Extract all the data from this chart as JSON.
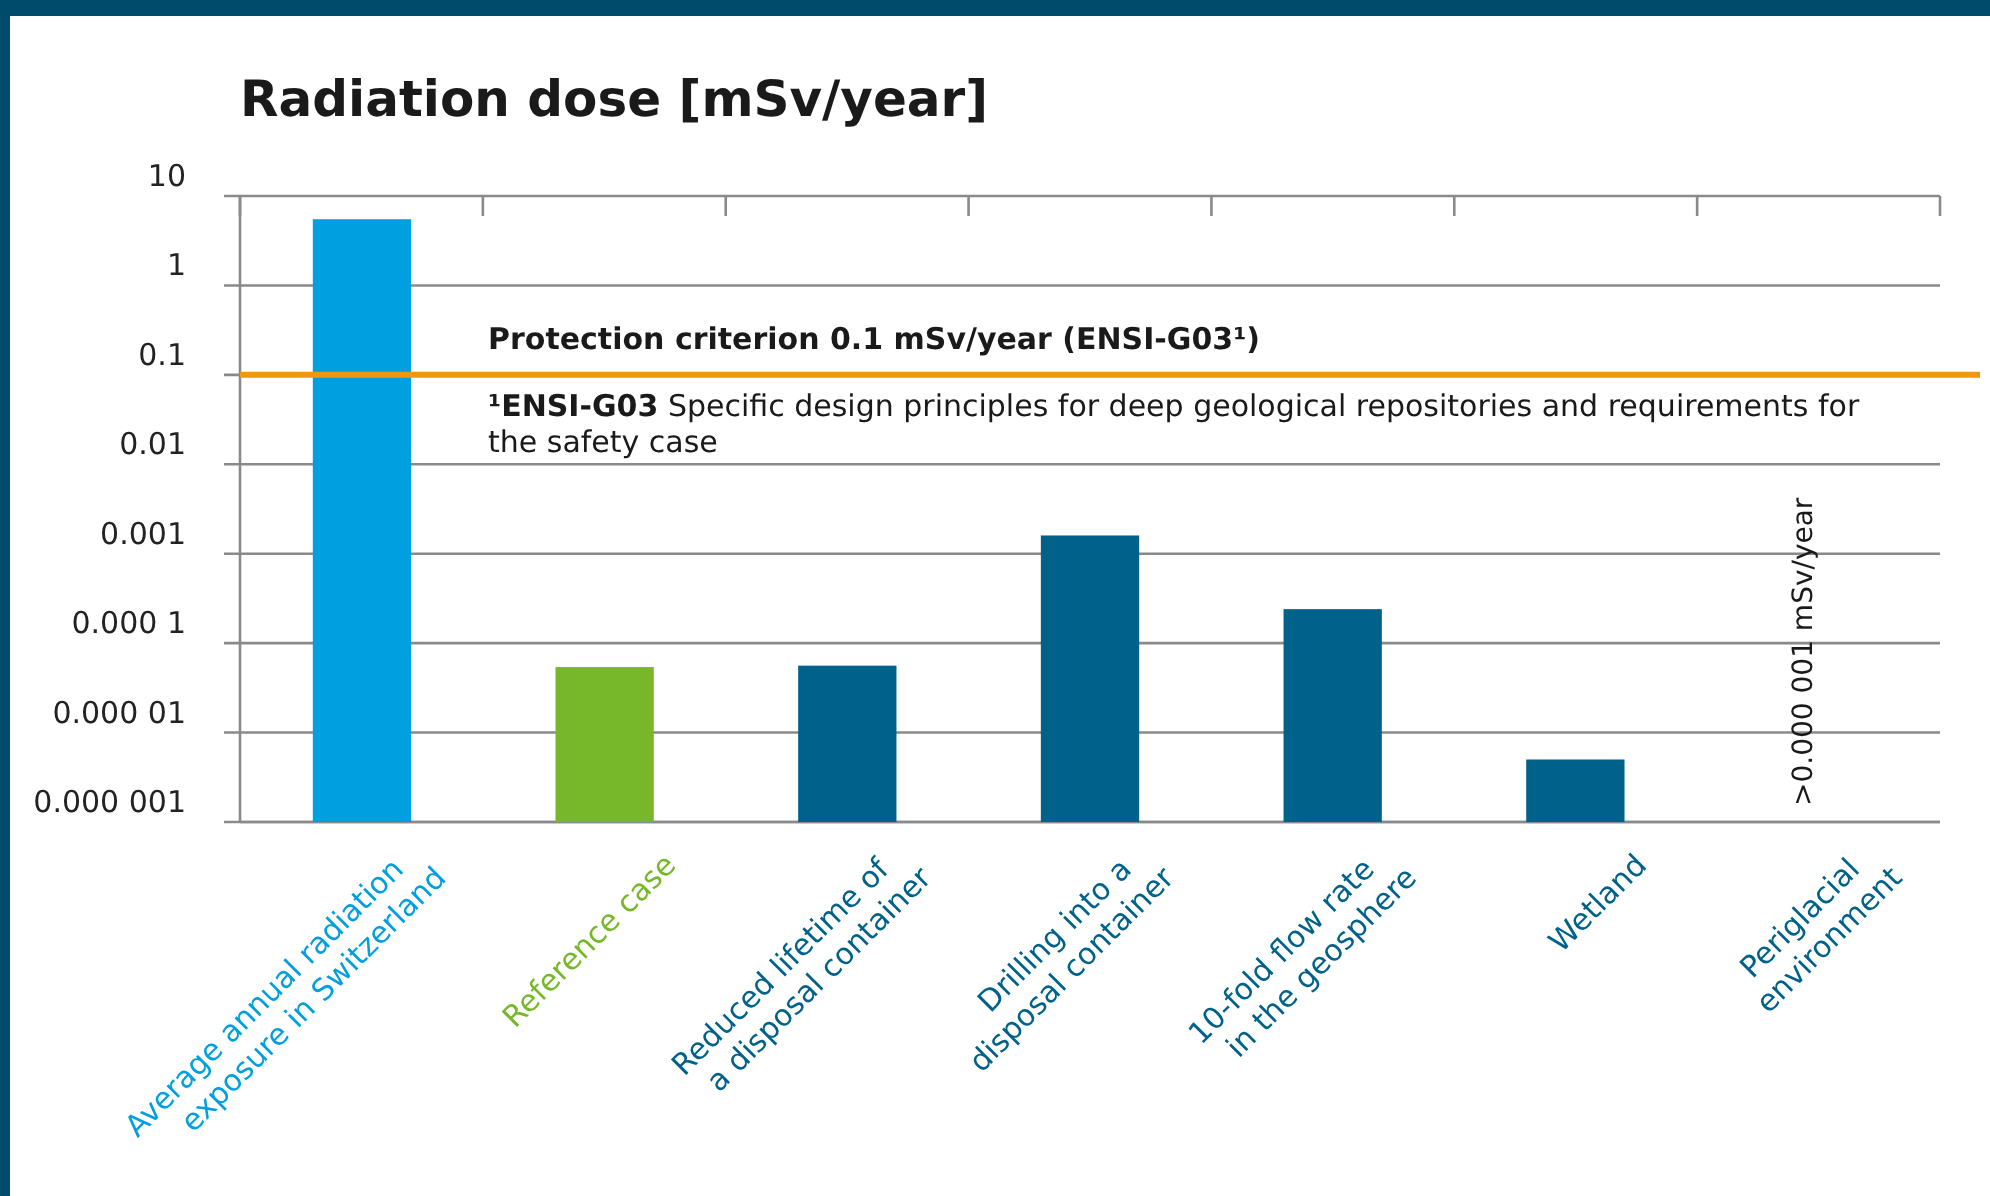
{
  "chart_data": {
    "type": "bar",
    "title": "Radiation dose [mSv/year]",
    "categories": [
      "Average annual radiation exposure in Switzerland",
      "Reference case",
      "Reduced lifetime of a disposal container",
      "Drilling into a disposal container",
      "10-fold flow rate in the geosphere",
      "Wetland",
      "Periglacial environment"
    ],
    "values": [
      5.5,
      5.4e-05,
      5.6e-05,
      0.0016,
      0.00024,
      5e-06,
      null
    ],
    "colors": [
      "#009fe0",
      "#76b82a",
      "#00628b",
      "#00628b",
      "#00628b",
      "#00628b",
      "#00628b"
    ],
    "log": true,
    "ylim": [
      1e-06,
      10
    ],
    "yticks": [
      10,
      1,
      0.1,
      0.01,
      0.001,
      {
        "value": 0.0001,
        "label": "0.000 1"
      },
      {
        "value": 1e-05,
        "label": "0.000 01"
      },
      {
        "value": 1e-06,
        "label": "0.000 001"
      }
    ],
    "grid": "y",
    "ref_lines": [
      {
        "axis": "y",
        "value": 0.1,
        "label": "Protection criterion 0.1 mSv/year (ENSI-G03¹)",
        "color": "#f0960f"
      }
    ],
    "annotations": [
      "¹ENSI-G03 Specific design principles for deep geological repositories and requirements for the safety case",
      ">0.000 001 mSv/year"
    ]
  }
}
